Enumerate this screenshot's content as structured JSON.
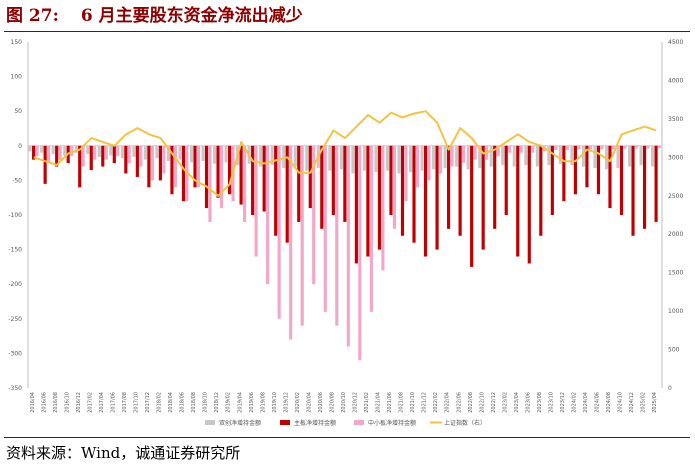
{
  "figure": {
    "number": "图 27:",
    "title": "6 月主要股东资金净流出减少",
    "source": "资料来源：Wind，诚通证券研究所"
  },
  "chart_data": {
    "type": "bar",
    "combo": "bar + line (secondary axis)",
    "title": "",
    "xlabel": "",
    "ylabel": "",
    "y_left": {
      "lim": [
        -350,
        150
      ],
      "ticks": [
        150,
        100,
        50,
        0,
        -50,
        -100,
        -150,
        -200,
        -250,
        -300,
        -350
      ]
    },
    "y_right": {
      "lim": [
        0,
        4500
      ],
      "ticks": [
        4500,
        4000,
        3500,
        3000,
        2500,
        2000,
        1500,
        1000,
        500,
        0
      ]
    },
    "grid": false,
    "legend_position": "bottom",
    "categories": [
      "2016/04",
      "2016/06",
      "2016/08",
      "2016/10",
      "2016/12",
      "2017/02",
      "2017/04",
      "2017/06",
      "2017/08",
      "2017/10",
      "2017/12",
      "2018/02",
      "2018/04",
      "2018/06",
      "2018/08",
      "2018/10",
      "2018/12",
      "2019/02",
      "2019/04",
      "2019/06",
      "2019/08",
      "2019/10",
      "2019/12",
      "2020/02",
      "2020/04",
      "2020/06",
      "2020/08",
      "2020/10",
      "2020/12",
      "2021/02",
      "2021/04",
      "2021/06",
      "2021/08",
      "2021/10",
      "2021/12",
      "2022/02",
      "2022/04",
      "2022/06",
      "2022/08",
      "2022/10",
      "2022/12",
      "2023/02",
      "2023/04",
      "2023/06",
      "2023/08",
      "2023/10",
      "2023/12",
      "2024/02",
      "2024/04",
      "2024/06",
      "2024/08",
      "2024/10",
      "2024/12",
      "2025/02",
      "2025/04"
    ],
    "series": [
      {
        "name": "双创净增持金额",
        "type": "bar",
        "color": "#c8c8c8",
        "values": [
          -8,
          -10,
          -12,
          -14,
          -10,
          -12,
          -16,
          -14,
          -18,
          -16,
          -20,
          -18,
          -22,
          -20,
          -24,
          -22,
          -26,
          -24,
          -28,
          -26,
          -30,
          -28,
          -32,
          -30,
          -36,
          -32,
          -36,
          -34,
          -40,
          -36,
          -38,
          -36,
          -40,
          -38,
          -36,
          -34,
          -32,
          -30,
          -34,
          -32,
          -30,
          -28,
          -30,
          -28,
          -30,
          -28,
          -26,
          -28,
          -30,
          -32,
          -34,
          -32,
          -30,
          -28,
          -30
        ]
      },
      {
        "name": "主板净增持金额",
        "type": "bar",
        "color": "#c00000",
        "values": [
          -20,
          -55,
          -30,
          -25,
          -60,
          -35,
          -30,
          -25,
          -40,
          -45,
          -60,
          -50,
          -70,
          -80,
          -60,
          -90,
          -75,
          -70,
          -85,
          -100,
          -95,
          -130,
          -140,
          -110,
          -90,
          -120,
          -100,
          -110,
          -170,
          -160,
          -150,
          -100,
          -130,
          -140,
          -160,
          -150,
          -120,
          -130,
          -175,
          -150,
          -120,
          -100,
          -160,
          -170,
          -130,
          -100,
          -80,
          -70,
          -60,
          -70,
          -90,
          -100,
          -130,
          -120,
          -110
        ]
      },
      {
        "name": "中小板净增持金额",
        "type": "bar",
        "color": "#f4a6c8",
        "values": [
          -15,
          -25,
          -20,
          -15,
          -30,
          -20,
          -20,
          -15,
          -25,
          -30,
          -50,
          -40,
          -60,
          -80,
          -60,
          -110,
          -90,
          -80,
          -110,
          -160,
          -200,
          -250,
          -280,
          -260,
          -200,
          -240,
          -260,
          -290,
          -310,
          -240,
          -180,
          -120,
          -80,
          -60,
          -50,
          -40,
          -30,
          -25,
          -20,
          -20,
          -15,
          -10,
          -10,
          -10,
          -8,
          -6,
          -6,
          -5,
          -5,
          -5,
          -5,
          -4,
          -4,
          -4,
          -3
        ]
      },
      {
        "name": "上证指数（右）",
        "type": "line",
        "axis": "right",
        "color": "#f5c342",
        "values": [
          3000,
          2950,
          2900,
          3050,
          3100,
          3250,
          3200,
          3150,
          3300,
          3380,
          3300,
          3250,
          3050,
          2850,
          2700,
          2620,
          2500,
          2650,
          3200,
          2950,
          2920,
          2960,
          3000,
          2800,
          2800,
          3100,
          3350,
          3250,
          3400,
          3550,
          3450,
          3580,
          3520,
          3570,
          3600,
          3450,
          3100,
          3380,
          3250,
          3050,
          3100,
          3200,
          3300,
          3200,
          3150,
          3050,
          2950,
          2950,
          3100,
          3050,
          2950,
          3300,
          3350,
          3400,
          3350
        ]
      }
    ]
  }
}
